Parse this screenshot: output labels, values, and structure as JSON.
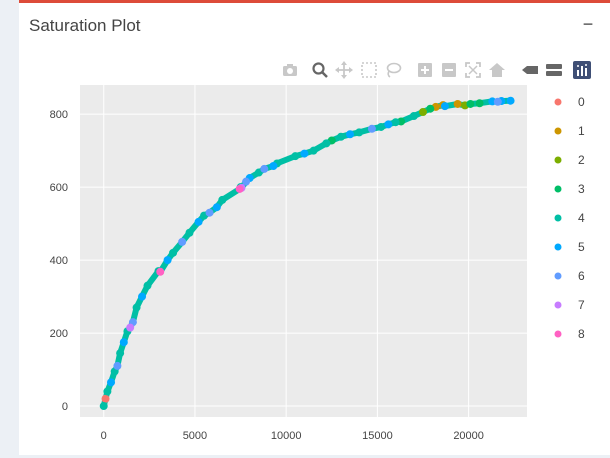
{
  "panel": {
    "title": "Saturation Plot",
    "collapse_label": "−",
    "accent": "#dd4b39"
  },
  "toolbar": {
    "icons": [
      "camera-icon",
      "zoom-icon",
      "pan-icon",
      "box-select-icon",
      "lasso-select-icon",
      "zoom-in-icon",
      "zoom-out-icon",
      "autoscale-icon",
      "reset-axes-icon",
      "hover-closest-icon",
      "hover-compare-icon",
      "plotly-logo-icon"
    ]
  },
  "chart_data": {
    "type": "scatter",
    "xlim": [
      -1300,
      23200
    ],
    "ylim": [
      -30,
      880
    ],
    "xticks": [
      0,
      5000,
      10000,
      15000,
      20000
    ],
    "yticks": [
      0,
      200,
      400,
      600,
      800
    ],
    "xtick_labels": [
      "0",
      "5000",
      "10000",
      "15000",
      "20000"
    ],
    "ytick_labels": [
      "0",
      "200",
      "400",
      "600",
      "800"
    ],
    "grid": true,
    "legend_position": "right",
    "series": [
      {
        "name": "0",
        "color": "#f8766d",
        "points": [
          [
            100,
            20
          ]
        ]
      },
      {
        "name": "1",
        "color": "#cd9600",
        "points": [
          [
            18200,
            820
          ],
          [
            18600,
            825
          ],
          [
            19400,
            828
          ]
        ]
      },
      {
        "name": "2",
        "color": "#7cae00",
        "points": [
          [
            17500,
            806
          ],
          [
            19800,
            824
          ]
        ]
      },
      {
        "name": "3",
        "color": "#00be67",
        "points": [
          [
            12500,
            728
          ],
          [
            16300,
            780
          ],
          [
            17900,
            815
          ],
          [
            20100,
            828
          ],
          [
            20600,
            830
          ]
        ]
      },
      {
        "name": "4",
        "color": "#00bfa5",
        "points": [
          [
            0,
            0
          ],
          [
            200,
            40
          ],
          [
            600,
            95
          ],
          [
            900,
            145
          ],
          [
            1300,
            205
          ],
          [
            1800,
            270
          ],
          [
            2400,
            330
          ],
          [
            3000,
            370
          ],
          [
            3800,
            420
          ],
          [
            4700,
            475
          ],
          [
            5500,
            522
          ],
          [
            6500,
            565
          ],
          [
            7500,
            600
          ],
          [
            8500,
            640
          ],
          [
            9500,
            665
          ],
          [
            10500,
            685
          ],
          [
            11500,
            700
          ],
          [
            12200,
            720
          ],
          [
            13000,
            738
          ],
          [
            14000,
            750
          ],
          [
            15200,
            765
          ],
          [
            16000,
            778
          ],
          [
            17000,
            795
          ]
        ]
      },
      {
        "name": "5",
        "color": "#00a9ff",
        "points": [
          [
            400,
            65
          ],
          [
            1100,
            175
          ],
          [
            2100,
            300
          ],
          [
            3500,
            400
          ],
          [
            5200,
            505
          ],
          [
            6200,
            545
          ],
          [
            8000,
            625
          ],
          [
            9300,
            658
          ],
          [
            11000,
            692
          ],
          [
            13500,
            745
          ],
          [
            15600,
            772
          ],
          [
            18700,
            822
          ],
          [
            21300,
            835
          ],
          [
            21800,
            836
          ],
          [
            22300,
            837
          ]
        ]
      },
      {
        "name": "6",
        "color": "#619cff",
        "points": [
          [
            750,
            110
          ],
          [
            1600,
            230
          ],
          [
            4300,
            450
          ],
          [
            5800,
            530
          ],
          [
            7800,
            615
          ],
          [
            8800,
            650
          ],
          [
            14700,
            760
          ],
          [
            21600,
            834
          ]
        ]
      },
      {
        "name": "7",
        "color": "#c77cff",
        "points": [
          [
            1450,
            215
          ],
          [
            7550,
            598
          ]
        ]
      },
      {
        "name": "8",
        "color": "#ff61c3",
        "points": [
          [
            3100,
            368
          ],
          [
            7450,
            595
          ]
        ]
      }
    ]
  }
}
